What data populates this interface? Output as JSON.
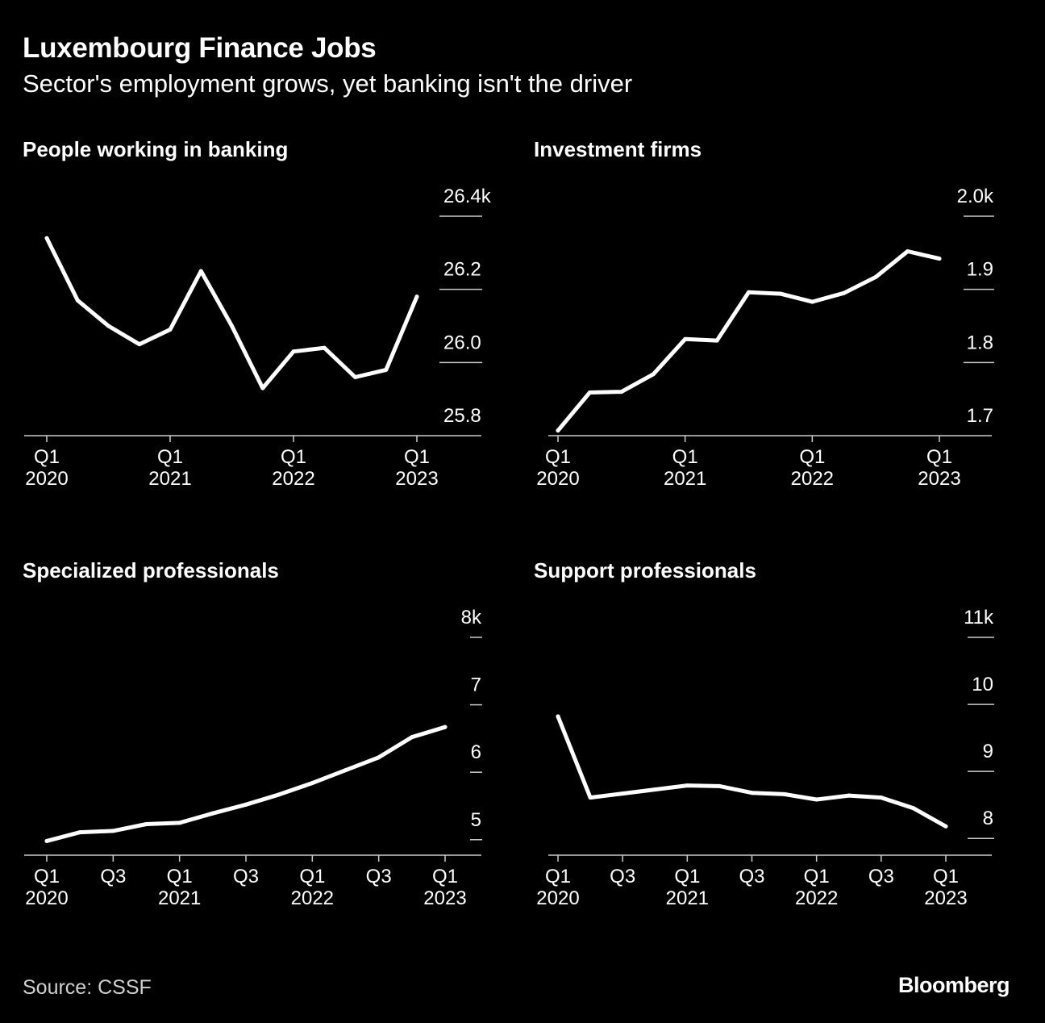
{
  "header": {
    "title": "Luxembourg Finance Jobs",
    "subtitle": "Sector's employment grows, yet banking isn't the driver"
  },
  "footer": {
    "source": "Source: CSSF",
    "brand": "Bloomberg"
  },
  "colors": {
    "background": "#000000",
    "line": "#ffffff",
    "text": "#ffffff",
    "axis": "#cccccc"
  },
  "chart_data": [
    {
      "type": "line",
      "title": "People working in banking",
      "x": [
        "Q1 2020",
        "Q2 2020",
        "Q3 2020",
        "Q4 2020",
        "Q1 2021",
        "Q2 2021",
        "Q3 2021",
        "Q4 2021",
        "Q1 2022",
        "Q2 2022",
        "Q3 2022",
        "Q4 2022",
        "Q1 2023"
      ],
      "values": [
        26.34,
        26.17,
        26.1,
        26.05,
        26.09,
        26.25,
        26.1,
        25.93,
        26.03,
        26.04,
        25.96,
        25.98,
        26.18
      ],
      "ylim": [
        25.8,
        26.4
      ],
      "yticks": [
        {
          "value": 26.4,
          "label": "26.4k"
        },
        {
          "value": 26.2,
          "label": "26.2"
        },
        {
          "value": 26.0,
          "label": "26.0"
        },
        {
          "value": 25.8,
          "label": "25.8"
        }
      ],
      "xticks": [
        {
          "index": 0,
          "q": "Q1",
          "year": "2020"
        },
        {
          "index": 4,
          "q": "Q1",
          "year": "2021"
        },
        {
          "index": 8,
          "q": "Q1",
          "year": "2022"
        },
        {
          "index": 12,
          "q": "Q1",
          "year": "2023"
        }
      ],
      "xlabel": "",
      "ylabel": ""
    },
    {
      "type": "line",
      "title": "Investment firms",
      "x": [
        "Q1 2020",
        "Q2 2020",
        "Q3 2020",
        "Q4 2020",
        "Q1 2021",
        "Q2 2021",
        "Q3 2021",
        "Q4 2021",
        "Q1 2022",
        "Q2 2022",
        "Q3 2022",
        "Q4 2022",
        "Q1 2023"
      ],
      "values": [
        1.707,
        1.759,
        1.76,
        1.784,
        1.832,
        1.83,
        1.896,
        1.894,
        1.883,
        1.895,
        1.917,
        1.952,
        1.942
      ],
      "ylim": [
        1.7,
        2.0
      ],
      "yticks": [
        {
          "value": 2.0,
          "label": "2.0k"
        },
        {
          "value": 1.9,
          "label": "1.9"
        },
        {
          "value": 1.8,
          "label": "1.8"
        },
        {
          "value": 1.7,
          "label": "1.7"
        }
      ],
      "xticks": [
        {
          "index": 0,
          "q": "Q1",
          "year": "2020"
        },
        {
          "index": 4,
          "q": "Q1",
          "year": "2021"
        },
        {
          "index": 8,
          "q": "Q1",
          "year": "2022"
        },
        {
          "index": 12,
          "q": "Q1",
          "year": "2023"
        }
      ],
      "xlabel": "",
      "ylabel": ""
    },
    {
      "type": "line",
      "title": "Specialized professionals",
      "x": [
        "Q1 2020",
        "Q2 2020",
        "Q3 2020",
        "Q4 2020",
        "Q1 2021",
        "Q2 2021",
        "Q3 2021",
        "Q4 2021",
        "Q1 2022",
        "Q2 2022",
        "Q3 2022",
        "Q4 2022",
        "Q1 2023"
      ],
      "values": [
        4.98,
        5.11,
        5.13,
        5.23,
        5.25,
        5.39,
        5.52,
        5.67,
        5.84,
        6.03,
        6.22,
        6.52,
        6.67
      ],
      "ylim": [
        4.77,
        8.0
      ],
      "yticks": [
        {
          "value": 8,
          "label": "8k"
        },
        {
          "value": 7,
          "label": "7"
        },
        {
          "value": 6,
          "label": "6"
        },
        {
          "value": 5,
          "label": "5"
        }
      ],
      "xticks": [
        {
          "index": 0,
          "q": "Q1",
          "year": "2020"
        },
        {
          "index": 2,
          "q": "Q3",
          "year": ""
        },
        {
          "index": 4,
          "q": "Q1",
          "year": "2021"
        },
        {
          "index": 6,
          "q": "Q3",
          "year": ""
        },
        {
          "index": 8,
          "q": "Q1",
          "year": "2022"
        },
        {
          "index": 10,
          "q": "Q3",
          "year": ""
        },
        {
          "index": 12,
          "q": "Q1",
          "year": "2023"
        }
      ],
      "xlabel": "",
      "ylabel": ""
    },
    {
      "type": "line",
      "title": "Support professionals",
      "x": [
        "Q1 2020",
        "Q2 2020",
        "Q3 2020",
        "Q4 2020",
        "Q1 2021",
        "Q2 2021",
        "Q3 2021",
        "Q4 2021",
        "Q1 2022",
        "Q2 2022",
        "Q3 2022",
        "Q4 2022",
        "Q1 2023"
      ],
      "values": [
        9.82,
        8.61,
        8.67,
        8.73,
        8.79,
        8.78,
        8.68,
        8.66,
        8.58,
        8.64,
        8.61,
        8.45,
        8.18
      ],
      "ylim": [
        7.75,
        11.0
      ],
      "yticks": [
        {
          "value": 11,
          "label": "11k"
        },
        {
          "value": 10,
          "label": "10"
        },
        {
          "value": 9,
          "label": "9"
        },
        {
          "value": 8,
          "label": "8"
        }
      ],
      "xticks": [
        {
          "index": 0,
          "q": "Q1",
          "year": "2020"
        },
        {
          "index": 2,
          "q": "Q3",
          "year": ""
        },
        {
          "index": 4,
          "q": "Q1",
          "year": "2021"
        },
        {
          "index": 6,
          "q": "Q3",
          "year": ""
        },
        {
          "index": 8,
          "q": "Q1",
          "year": "2022"
        },
        {
          "index": 10,
          "q": "Q3",
          "year": ""
        },
        {
          "index": 12,
          "q": "Q1",
          "year": "2023"
        }
      ],
      "xlabel": "",
      "ylabel": ""
    }
  ]
}
